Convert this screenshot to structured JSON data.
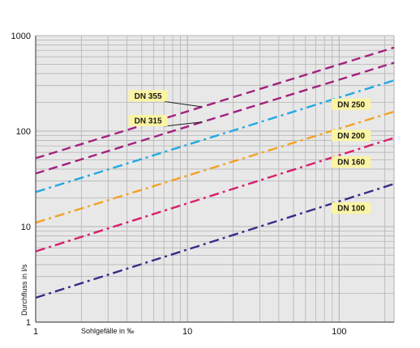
{
  "chart_data": {
    "type": "line",
    "x_scale": "log",
    "y_scale": "log",
    "xlim": [
      1,
      230
    ],
    "ylim": [
      1,
      1000
    ],
    "x_ticks": [
      1,
      10,
      100
    ],
    "y_ticks": [
      1,
      10,
      100,
      1000
    ],
    "x_tick_labels": [
      "1",
      "10",
      "100"
    ],
    "y_tick_labels": [
      "1",
      "10",
      "100",
      "1000"
    ],
    "xlabel": "Sohlgefälle in ‰",
    "ylabel": "Durchfluss in l/s",
    "grid": true,
    "series": [
      {
        "name": "DN 355",
        "color": "#a3217f",
        "dash": "dashed",
        "x": [
          1,
          230
        ],
        "y": [
          52,
          750
        ]
      },
      {
        "name": "DN 315",
        "color": "#a3217f",
        "dash": "dashed",
        "x": [
          1,
          230
        ],
        "y": [
          36,
          520
        ]
      },
      {
        "name": "DN 250",
        "color": "#23a8e2",
        "dash": "dashdot",
        "x": [
          1,
          230
        ],
        "y": [
          23,
          340
        ]
      },
      {
        "name": "DN 200",
        "color": "#f2a223",
        "dash": "dashdot",
        "x": [
          1,
          230
        ],
        "y": [
          11,
          160
        ]
      },
      {
        "name": "DN 160",
        "color": "#d81f6b",
        "dash": "dashdot",
        "x": [
          1,
          230
        ],
        "y": [
          5.5,
          85
        ]
      },
      {
        "name": "DN 100",
        "color": "#3f2888",
        "dash": "dashdot",
        "x": [
          1,
          230
        ],
        "y": [
          1.8,
          28
        ]
      }
    ],
    "annotations": [
      {
        "text": "DN 355",
        "series": "DN 355",
        "side": "left"
      },
      {
        "text": "DN 315",
        "series": "DN 315",
        "side": "left"
      },
      {
        "text": "DN 250",
        "series": "DN 250",
        "side": "right"
      },
      {
        "text": "DN 200",
        "series": "DN 200",
        "side": "right"
      },
      {
        "text": "DN 160",
        "series": "DN 160",
        "side": "right"
      },
      {
        "text": "DN 100",
        "series": "DN 100",
        "side": "right"
      }
    ],
    "colors": {
      "background": "#ffffff",
      "plot_background": "#e8e8e8",
      "grid": "#b4b4b4",
      "axis": "#555555",
      "label_box": "#fbf5a3"
    }
  }
}
